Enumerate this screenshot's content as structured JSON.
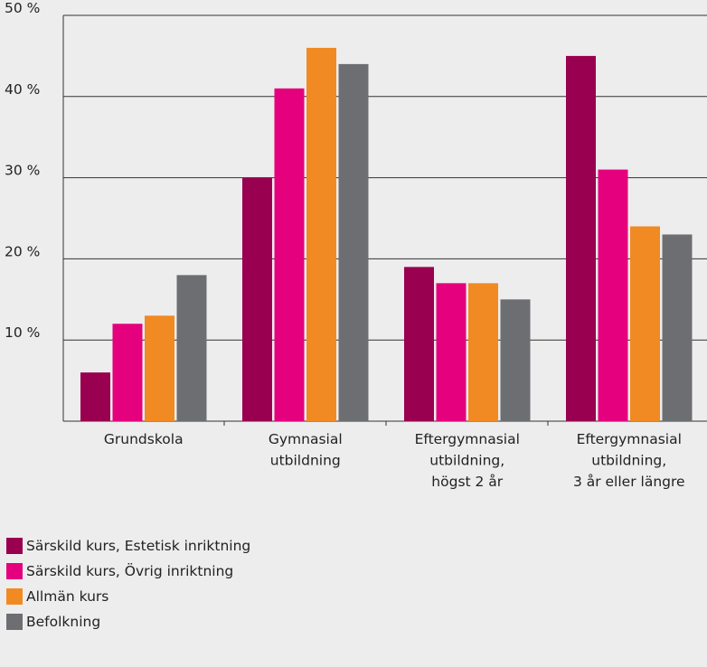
{
  "chart_data": {
    "type": "bar",
    "categories": [
      [
        "Grundskola"
      ],
      [
        "Gymnasial",
        "utbildning"
      ],
      [
        "Eftergymnasial",
        "utbildning,",
        "högst 2 år"
      ],
      [
        "Eftergymnasial",
        "utbildning,",
        "3 år eller längre"
      ]
    ],
    "series": [
      {
        "name": "Särskild kurs, Estetisk inriktning",
        "color": "#99004f",
        "values": [
          6,
          30,
          19,
          45
        ]
      },
      {
        "name": "Särskild kurs, Övrig inriktning",
        "color": "#e5007e",
        "values": [
          12,
          41,
          17,
          31
        ]
      },
      {
        "name": "Allmän kurs",
        "color": "#f18a23",
        "values": [
          13,
          46,
          17,
          24
        ]
      },
      {
        "name": "Befolkning",
        "color": "#6d6e71",
        "values": [
          18,
          44,
          15,
          23
        ]
      }
    ],
    "ylim": [
      0,
      50
    ],
    "yticks": [
      10,
      20,
      30,
      40,
      50
    ],
    "ytick_labels": [
      "10 %",
      "20 %",
      "30 %",
      "40 %",
      "50 %"
    ],
    "grid": true,
    "legend_position": "bottom-left",
    "title": "",
    "xlabel": "",
    "ylabel": ""
  }
}
